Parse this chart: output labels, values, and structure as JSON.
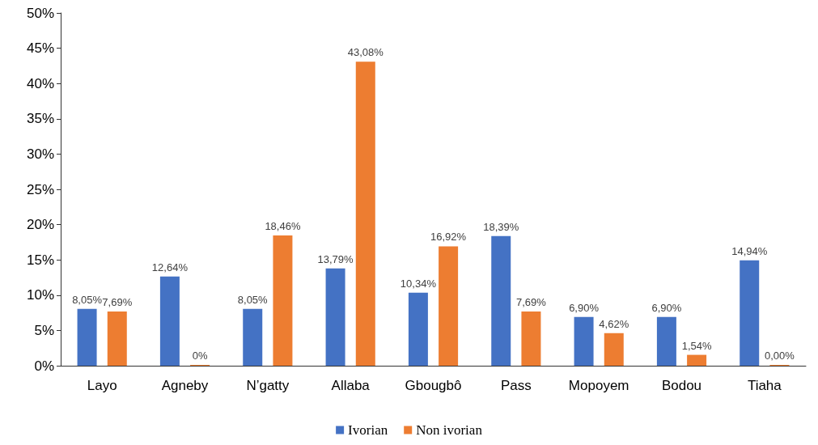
{
  "chart_data": {
    "type": "bar",
    "categories": [
      "Layo",
      "Agneby",
      "N’gatty",
      "Allaba",
      "Gbougbô",
      "Pass",
      "Mopoyem",
      "Bodou",
      "Tiaha"
    ],
    "series": [
      {
        "name": "Ivorian",
        "color": "#4472c4",
        "values": [
          8.05,
          12.64,
          8.05,
          13.79,
          10.34,
          18.39,
          6.9,
          6.9,
          14.94
        ],
        "value_labels": [
          "8,05%",
          "12,64%",
          "8,05%",
          "13,79%",
          "10,34%",
          "18,39%",
          "6,90%",
          "6,90%",
          "14,94%"
        ]
      },
      {
        "name": "Non ivorian",
        "color": "#ed7d31",
        "values": [
          7.69,
          0,
          18.46,
          43.08,
          16.92,
          7.69,
          4.62,
          1.54,
          0.0
        ],
        "value_labels": [
          "7,69%",
          "0%",
          "18,46%",
          "43,08%",
          "16,92%",
          "7,69%",
          "4,62%",
          "1,54%",
          "0,00%"
        ]
      }
    ],
    "ylim": [
      0,
      50
    ],
    "yticks": [
      {
        "value": 0,
        "label": "0%"
      },
      {
        "value": 5,
        "label": "5%"
      },
      {
        "value": 10,
        "label": "10%"
      },
      {
        "value": 15,
        "label": "15%"
      },
      {
        "value": 20,
        "label": "20%"
      },
      {
        "value": 25,
        "label": "25%"
      },
      {
        "value": 30,
        "label": "30%"
      },
      {
        "value": 35,
        "label": "35%"
      },
      {
        "value": 40,
        "label": "40%"
      },
      {
        "value": 45,
        "label": "45%"
      },
      {
        "value": 50,
        "label": "50%"
      }
    ],
    "grid": false,
    "legend": "bottom"
  }
}
